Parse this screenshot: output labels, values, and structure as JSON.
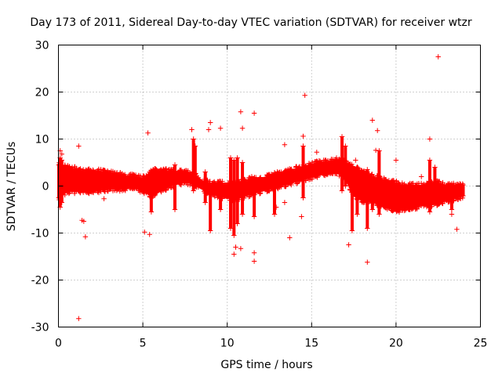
{
  "chart_data": {
    "type": "scatter",
    "title": "Day 173 of 2011, Sidereal Day-to-day VTEC variation (SDTVAR) for receiver wtzr",
    "xlabel": "GPS time / hours",
    "ylabel": "SDTVAR / TECUs",
    "xlim": [
      0,
      25
    ],
    "ylim": [
      -30,
      30
    ],
    "xticks": [
      0,
      5,
      10,
      15,
      20,
      25
    ],
    "yticks": [
      -30,
      -20,
      -10,
      0,
      10,
      20,
      30
    ],
    "xtick_labels": [
      "0",
      "5",
      "10",
      "15",
      "20",
      "25"
    ],
    "ytick_labels": [
      "-30",
      "-20",
      "-10",
      "0",
      "10",
      "20",
      "30"
    ],
    "grid": true,
    "marker": "plus",
    "color": "#ff0000",
    "band": {
      "description": "dense band of data points: [hour, lower TECU, upper TECU]",
      "points": [
        [
          0.0,
          -2.5,
          4.5
        ],
        [
          0.5,
          -1.0,
          4.0
        ],
        [
          1.0,
          -1.0,
          3.5
        ],
        [
          1.5,
          -1.0,
          3.3
        ],
        [
          2.0,
          -1.0,
          3.0
        ],
        [
          2.5,
          -0.8,
          3.0
        ],
        [
          3.0,
          -0.5,
          2.8
        ],
        [
          3.5,
          -0.5,
          2.5
        ],
        [
          4.0,
          -0.5,
          2.0
        ],
        [
          4.5,
          0.0,
          2.0
        ],
        [
          5.0,
          -1.0,
          1.5
        ],
        [
          5.5,
          -2.0,
          3.0
        ],
        [
          6.0,
          -1.0,
          3.5
        ],
        [
          6.5,
          0.0,
          3.0
        ],
        [
          7.0,
          0.5,
          3.0
        ],
        [
          7.5,
          1.0,
          3.0
        ],
        [
          8.0,
          0.5,
          2.5
        ],
        [
          8.5,
          -0.5,
          1.0
        ],
        [
          9.0,
          -1.5,
          0.5
        ],
        [
          9.5,
          -2.0,
          0.5
        ],
        [
          10.0,
          -2.5,
          0.5
        ],
        [
          10.5,
          -2.5,
          0.5
        ],
        [
          11.0,
          -2.0,
          1.0
        ],
        [
          11.5,
          -1.5,
          1.5
        ],
        [
          12.0,
          -1.0,
          1.5
        ],
        [
          12.5,
          -0.5,
          2.0
        ],
        [
          13.0,
          0.0,
          2.5
        ],
        [
          13.5,
          0.5,
          3.0
        ],
        [
          14.0,
          1.0,
          3.5
        ],
        [
          14.5,
          1.5,
          4.0
        ],
        [
          15.0,
          2.0,
          4.5
        ],
        [
          15.5,
          2.5,
          5.0
        ],
        [
          16.0,
          3.0,
          5.0
        ],
        [
          16.5,
          3.0,
          5.5
        ],
        [
          17.0,
          2.0,
          5.0
        ],
        [
          17.5,
          -2.0,
          4.0
        ],
        [
          18.0,
          -3.0,
          3.0
        ],
        [
          18.5,
          -3.0,
          2.0
        ],
        [
          19.0,
          -4.0,
          1.5
        ],
        [
          19.5,
          -4.5,
          1.0
        ],
        [
          20.0,
          -5.0,
          0.5
        ],
        [
          20.5,
          -5.0,
          0.0
        ],
        [
          21.0,
          -4.5,
          0.0
        ],
        [
          21.5,
          -4.0,
          0.0
        ],
        [
          22.0,
          -4.0,
          0.5
        ],
        [
          22.5,
          -3.5,
          0.5
        ],
        [
          23.0,
          -3.0,
          0.0
        ],
        [
          23.5,
          -2.5,
          0.0
        ],
        [
          24.0,
          -2.0,
          0.0
        ]
      ]
    },
    "spikes": {
      "description": "vertical runs of points: [hour, low TECU, high TECU]",
      "points": [
        [
          0.1,
          -4.5,
          6.0
        ],
        [
          0.2,
          -3.5,
          5.5
        ],
        [
          5.5,
          -5.5,
          2.5
        ],
        [
          6.9,
          -5.0,
          4.5
        ],
        [
          8.0,
          -1.0,
          10.0
        ],
        [
          8.1,
          0.0,
          8.5
        ],
        [
          8.7,
          -3.5,
          3.0
        ],
        [
          9.0,
          -9.5,
          0.0
        ],
        [
          9.6,
          -5.0,
          1.0
        ],
        [
          10.2,
          -9.0,
          6.0
        ],
        [
          10.4,
          -10.5,
          5.5
        ],
        [
          10.6,
          -8.0,
          6.0
        ],
        [
          10.9,
          -6.0,
          5.0
        ],
        [
          11.6,
          -6.5,
          1.5
        ],
        [
          12.8,
          -6.0,
          2.5
        ],
        [
          14.5,
          -2.5,
          8.5
        ],
        [
          16.8,
          -1.0,
          10.5
        ],
        [
          17.0,
          0.0,
          8.5
        ],
        [
          17.4,
          -9.5,
          3.0
        ],
        [
          17.7,
          -6.0,
          0.0
        ],
        [
          18.3,
          -9.0,
          3.5
        ],
        [
          18.6,
          -5.0,
          1.5
        ],
        [
          19.0,
          -6.0,
          7.5
        ],
        [
          22.0,
          -5.5,
          5.5
        ],
        [
          22.3,
          -3.0,
          4.0
        ],
        [
          23.3,
          -5.0,
          0.5
        ]
      ]
    },
    "outliers": [
      [
        1.2,
        -28.2
      ],
      [
        1.2,
        8.5
      ],
      [
        1.6,
        -10.8
      ],
      [
        1.5,
        -7.5
      ],
      [
        1.4,
        -7.3
      ],
      [
        0.1,
        7.5
      ],
      [
        0.2,
        6.8
      ],
      [
        2.7,
        -2.7
      ],
      [
        5.3,
        11.3
      ],
      [
        5.1,
        -9.8
      ],
      [
        5.4,
        -10.3
      ],
      [
        5.3,
        2.0
      ],
      [
        5.8,
        3.5
      ],
      [
        7.9,
        12.0
      ],
      [
        9.0,
        13.5
      ],
      [
        8.9,
        12.0
      ],
      [
        9.6,
        12.3
      ],
      [
        10.8,
        15.8
      ],
      [
        10.9,
        12.3
      ],
      [
        11.6,
        15.5
      ],
      [
        11.6,
        -14.2
      ],
      [
        11.6,
        -16.0
      ],
      [
        10.4,
        -14.5
      ],
      [
        10.8,
        -13.3
      ],
      [
        10.5,
        -13.0
      ],
      [
        12.9,
        -4.5
      ],
      [
        13.4,
        -3.5
      ],
      [
        13.4,
        8.8
      ],
      [
        13.7,
        -11.0
      ],
      [
        14.4,
        -6.5
      ],
      [
        14.5,
        10.6
      ],
      [
        14.6,
        19.3
      ],
      [
        15.3,
        7.2
      ],
      [
        17.2,
        -12.5
      ],
      [
        18.3,
        -16.2
      ],
      [
        18.6,
        14.0
      ],
      [
        18.9,
        11.8
      ],
      [
        18.8,
        7.6
      ],
      [
        20.0,
        5.5
      ],
      [
        21.5,
        2.0
      ],
      [
        22.0,
        10.0
      ],
      [
        22.5,
        27.5
      ],
      [
        23.6,
        -9.2
      ],
      [
        23.3,
        -6.0
      ],
      [
        17.6,
        5.5
      ]
    ]
  }
}
